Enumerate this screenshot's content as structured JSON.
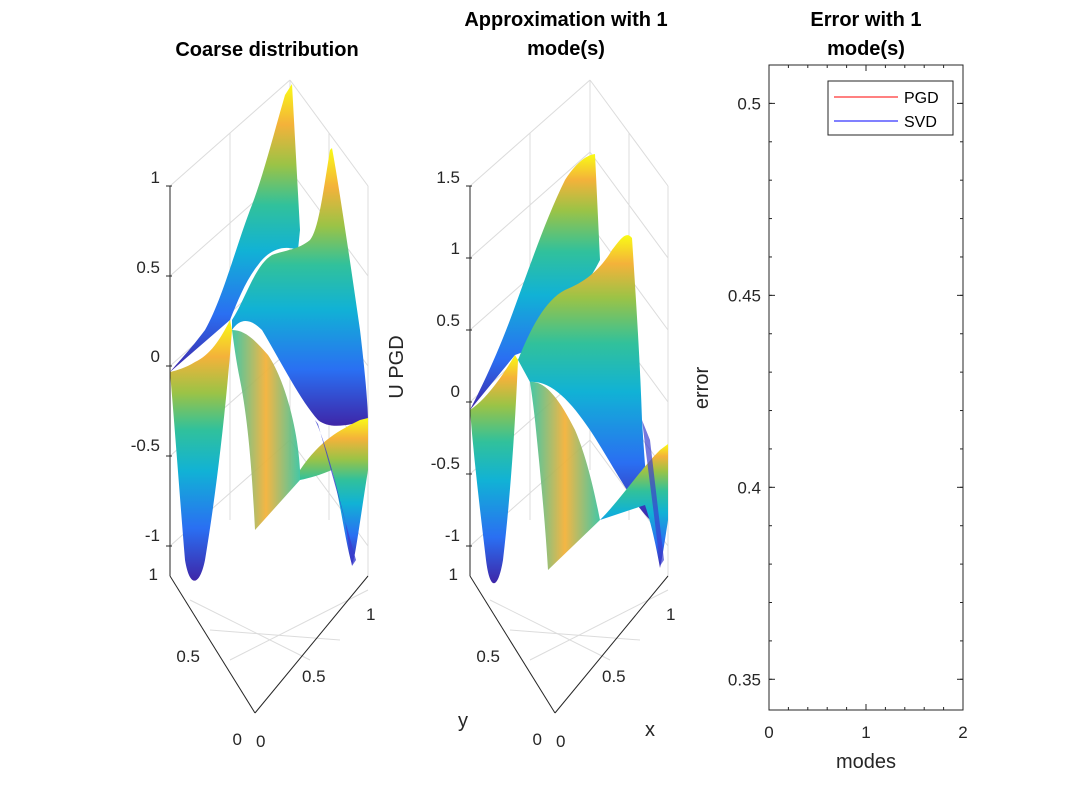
{
  "chart_data": [
    {
      "type": "surface",
      "title": "Coarse distribution",
      "xlabel": "",
      "ylabel": "",
      "zlabel": "",
      "x_ticks": [
        "0",
        "0.5",
        "1"
      ],
      "y_ticks": [
        "0",
        "0.5",
        "1"
      ],
      "z_ticks": [
        "1",
        "0.5",
        "0",
        "-0.5",
        "-1"
      ],
      "xlim": [
        0,
        1
      ],
      "ylim": [
        0,
        1
      ],
      "zlim": [
        -1,
        1
      ],
      "colormap": [
        "#3e26a8",
        "#2a6ff2",
        "#11b2d5",
        "#31c19b",
        "#9bc346",
        "#f4b23a",
        "#f9fb15"
      ]
    },
    {
      "type": "surface",
      "title_line1": "Approximation with 1",
      "title_line2": "mode(s)",
      "xlabel": "x",
      "ylabel": "y",
      "zlabel": "U PGD",
      "x_ticks": [
        "0",
        "0.5",
        "1"
      ],
      "y_ticks": [
        "0",
        "0.5",
        "1"
      ],
      "z_ticks": [
        "1.5",
        "1",
        "0.5",
        "0",
        "-0.5",
        "-1"
      ],
      "xlim": [
        0,
        1
      ],
      "ylim": [
        0,
        1
      ],
      "zlim": [
        -1,
        1.5
      ],
      "colormap": [
        "#3e26a8",
        "#2a6ff2",
        "#11b2d5",
        "#31c19b",
        "#9bc346",
        "#f4b23a",
        "#f9fb15"
      ]
    },
    {
      "type": "line",
      "title_line1": "Error with 1",
      "title_line2": "mode(s)",
      "xlabel": "modes",
      "ylabel": "error",
      "xlim": [
        0,
        2
      ],
      "ylim": [
        0.342,
        0.51
      ],
      "x_ticks": [
        "0",
        "1",
        "2"
      ],
      "y_ticks": [
        "0.5",
        "0.45",
        "0.4",
        "0.35"
      ],
      "y_tick_values": [
        0.5,
        0.45,
        0.4,
        0.35
      ],
      "x_tick_values": [
        0,
        1,
        2
      ],
      "series": [
        {
          "name": "PGD",
          "color": "#ff0000",
          "x": [],
          "y": []
        },
        {
          "name": "SVD",
          "color": "#0000ff",
          "x": [],
          "y": []
        }
      ],
      "legend_position": "top-right",
      "grid": false
    }
  ]
}
